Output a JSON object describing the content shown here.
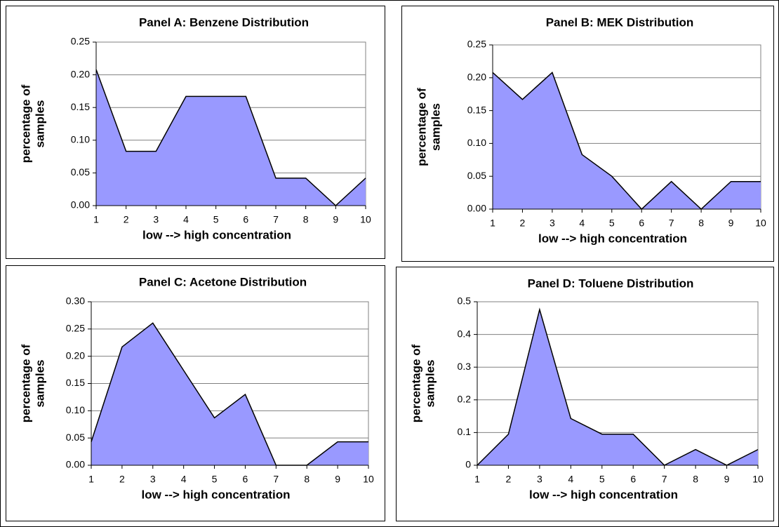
{
  "chart_data": [
    {
      "type": "area",
      "title": "Panel A:  Benzene Distribution",
      "xlabel": "low --> high concentration",
      "ylabel": [
        "percentage of",
        "samples"
      ],
      "color": "#9999ff",
      "grid": true,
      "x": [
        1,
        2,
        3,
        4,
        5,
        6,
        7,
        8,
        9,
        10
      ],
      "values": [
        0.208,
        0.083,
        0.083,
        0.167,
        0.167,
        0.167,
        0.042,
        0.042,
        0,
        0.042
      ],
      "xlim": [
        1,
        10
      ],
      "xticks": [
        1,
        2,
        3,
        4,
        5,
        6,
        7,
        8,
        9,
        10
      ],
      "ylim": [
        0,
        0.25
      ],
      "yticks": [
        {
          "value": 0,
          "label": "0.00"
        },
        {
          "value": 0.05,
          "label": "0.05"
        },
        {
          "value": 0.1,
          "label": "0.10"
        },
        {
          "value": 0.15,
          "label": "0.15"
        },
        {
          "value": 0.2,
          "label": "0.20"
        },
        {
          "value": 0.25,
          "label": "0.25"
        }
      ]
    },
    {
      "type": "area",
      "title": "Panel B:  MEK Distribution",
      "xlabel": "low --> high concentration",
      "ylabel": [
        "percentage of",
        "samples"
      ],
      "color": "#9999ff",
      "grid": true,
      "x": [
        1,
        2,
        3,
        4,
        5,
        6,
        7,
        8,
        9,
        10
      ],
      "values": [
        0.208,
        0.167,
        0.208,
        0.083,
        0.05,
        0,
        0.042,
        0,
        0.042,
        0.042
      ],
      "xlim": [
        1,
        10
      ],
      "xticks": [
        1,
        2,
        3,
        4,
        5,
        6,
        7,
        8,
        9,
        10
      ],
      "ylim": [
        0,
        0.25
      ],
      "yticks": [
        {
          "value": 0,
          "label": "0.00"
        },
        {
          "value": 0.05,
          "label": "0.05"
        },
        {
          "value": 0.1,
          "label": "0.10"
        },
        {
          "value": 0.15,
          "label": "0.15"
        },
        {
          "value": 0.2,
          "label": "0.20"
        },
        {
          "value": 0.25,
          "label": "0.25"
        }
      ]
    },
    {
      "type": "area",
      "title": "Panel C:  Acetone Distribution",
      "xlabel": "low --> high concentration",
      "ylabel": [
        "percentage of",
        "samples"
      ],
      "color": "#9999ff",
      "grid": true,
      "x": [
        1,
        2,
        3,
        4,
        5,
        6,
        7,
        8,
        9,
        10
      ],
      "values": [
        0.043,
        0.217,
        0.261,
        0.174,
        0.087,
        0.13,
        0,
        0,
        0.043,
        0.043
      ],
      "xlim": [
        1,
        10
      ],
      "xticks": [
        1,
        2,
        3,
        4,
        5,
        6,
        7,
        8,
        9,
        10
      ],
      "ylim": [
        0,
        0.3
      ],
      "yticks": [
        {
          "value": 0,
          "label": "0.00"
        },
        {
          "value": 0.05,
          "label": "0.05"
        },
        {
          "value": 0.1,
          "label": "0.10"
        },
        {
          "value": 0.15,
          "label": "0.15"
        },
        {
          "value": 0.2,
          "label": "0.20"
        },
        {
          "value": 0.25,
          "label": "0.25"
        },
        {
          "value": 0.3,
          "label": "0.30"
        }
      ]
    },
    {
      "type": "area",
      "title": "Panel D:  Toluene Distribution",
      "xlabel": "low --> high concentration",
      "ylabel": [
        "percentage of",
        "samples"
      ],
      "color": "#9999ff",
      "grid": true,
      "x": [
        1,
        2,
        3,
        4,
        5,
        6,
        7,
        8,
        9,
        10
      ],
      "values": [
        0,
        0.095,
        0.476,
        0.143,
        0.095,
        0.095,
        0,
        0.048,
        0,
        0.048
      ],
      "xlim": [
        1,
        10
      ],
      "xticks": [
        1,
        2,
        3,
        4,
        5,
        6,
        7,
        8,
        9,
        10
      ],
      "ylim": [
        0,
        0.5
      ],
      "yticks": [
        0,
        0.1,
        0.2,
        0.3,
        0.4,
        0.5
      ]
    }
  ]
}
